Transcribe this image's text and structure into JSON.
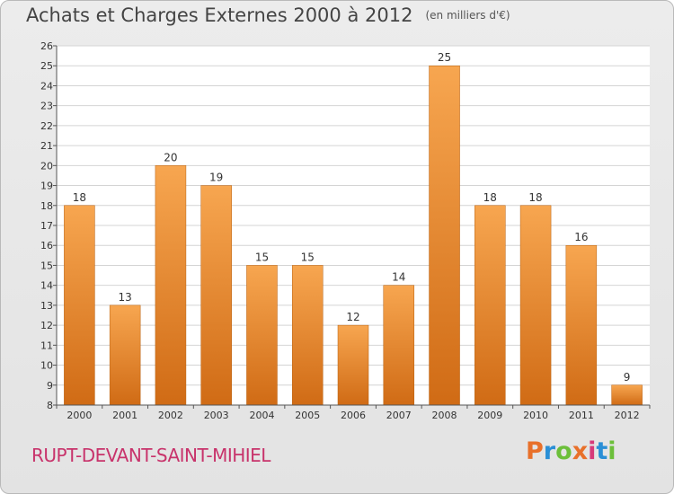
{
  "header": {
    "title": "Achats et Charges Externes 2000 à 2012",
    "unit": "(en milliers d'€)"
  },
  "footer": {
    "commune": "RUPT-DEVANT-SAINT-MIHIEL",
    "logo_text": "Proxiti",
    "logo_colors": [
      "#e8702a",
      "#2a8fd6",
      "#6cbf3a",
      "#e8702a",
      "#d63a7a",
      "#2a8fd6",
      "#6cbf3a"
    ]
  },
  "colors": {
    "bar_top": "#f7a650",
    "bar_bottom": "#d06b15",
    "bar_border": "#b8600f",
    "grid": "#d4d4d4",
    "axis": "#555555",
    "text": "#333333",
    "plot_bg": "#ffffff"
  },
  "chart_data": {
    "type": "bar",
    "title": "Achats et Charges Externes 2000 à 2012",
    "subtitle": "(en milliers d'€)",
    "xlabel": "",
    "ylabel": "",
    "categories": [
      "2000",
      "2001",
      "2002",
      "2003",
      "2004",
      "2005",
      "2006",
      "2007",
      "2008",
      "2009",
      "2010",
      "2011",
      "2012"
    ],
    "values": [
      18,
      13,
      20,
      19,
      15,
      15,
      12,
      14,
      25,
      18,
      18,
      16,
      9
    ],
    "ylim": [
      8,
      26
    ],
    "yticks": [
      8,
      9,
      10,
      11,
      12,
      13,
      14,
      15,
      16,
      17,
      18,
      19,
      20,
      21,
      22,
      23,
      24,
      25,
      26
    ],
    "grid": true,
    "data_labels": true
  }
}
